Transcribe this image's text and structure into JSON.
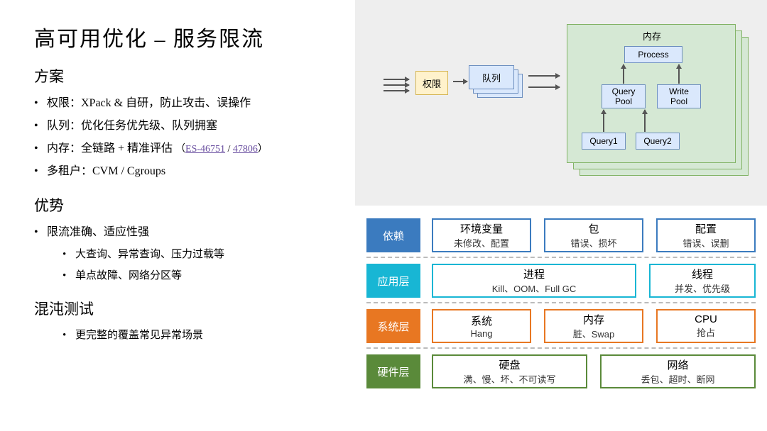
{
  "title": "高可用优化 – 服务限流",
  "sections": {
    "plan": {
      "heading": "方案",
      "items": [
        "权限：XPack & 自研，防止攻击、误操作",
        "队列：优化任务优先级、队列拥塞",
        "内存：全链路 + 精准评估",
        "多租户：CVM / Cgroups"
      ],
      "link1": "ES-46751",
      "link_sep": " / ",
      "link2": "47806"
    },
    "adv": {
      "heading": "优势",
      "items": [
        "限流准确、适应性强",
        "大查询、异常查询、压力过载等",
        "单点故障、网络分区等"
      ]
    },
    "chaos": {
      "heading": "混沌测试",
      "items": [
        "更完整的覆盖常见异常场景"
      ]
    }
  },
  "flow": {
    "auth": "权限",
    "queue": "队列",
    "memory_title": "内存",
    "process": "Process",
    "query_pool": "Query\nPool",
    "write_pool": "Write\nPool",
    "query1": "Query1",
    "query2": "Query2",
    "colors": {
      "auth_bg": "#fff2cc",
      "auth_border": "#d6b656",
      "queue_bg": "#dae8fc",
      "queue_border": "#6c8ebf",
      "mem_bg": "#d5e8d4",
      "mem_border": "#82b366",
      "panel_bg": "#eeeeee"
    }
  },
  "layers": {
    "rows": [
      {
        "label": "依赖",
        "label_color": "#3b7bbf",
        "cell_border": "#3b7bbf",
        "cells": [
          {
            "t": "环境变量",
            "d": "未修改、配置"
          },
          {
            "t": "包",
            "d": "错误、损坏"
          },
          {
            "t": "配置",
            "d": "错误、误删"
          }
        ]
      },
      {
        "label": "应用层",
        "label_color": "#18b6d4",
        "cell_border": "#18b6d4",
        "cells": [
          {
            "t": "进程",
            "d": "Kill、OOM、Full GC",
            "flex": 2
          },
          {
            "t": "线程",
            "d": "并发、优先级",
            "flex": 1
          }
        ]
      },
      {
        "label": "系统层",
        "label_color": "#e87722",
        "cell_border": "#e87722",
        "cells": [
          {
            "t": "系统",
            "d": "Hang"
          },
          {
            "t": "内存",
            "d": "脏、Swap"
          },
          {
            "t": "CPU",
            "d": "抢占"
          }
        ]
      },
      {
        "label": "硬件层",
        "label_color": "#5a8a3a",
        "cell_border": "#5a8a3a",
        "cells": [
          {
            "t": "硬盘",
            "d": "满、慢、坏、不可读写"
          },
          {
            "t": "网络",
            "d": "丢包、超时、断网"
          }
        ]
      }
    ]
  }
}
